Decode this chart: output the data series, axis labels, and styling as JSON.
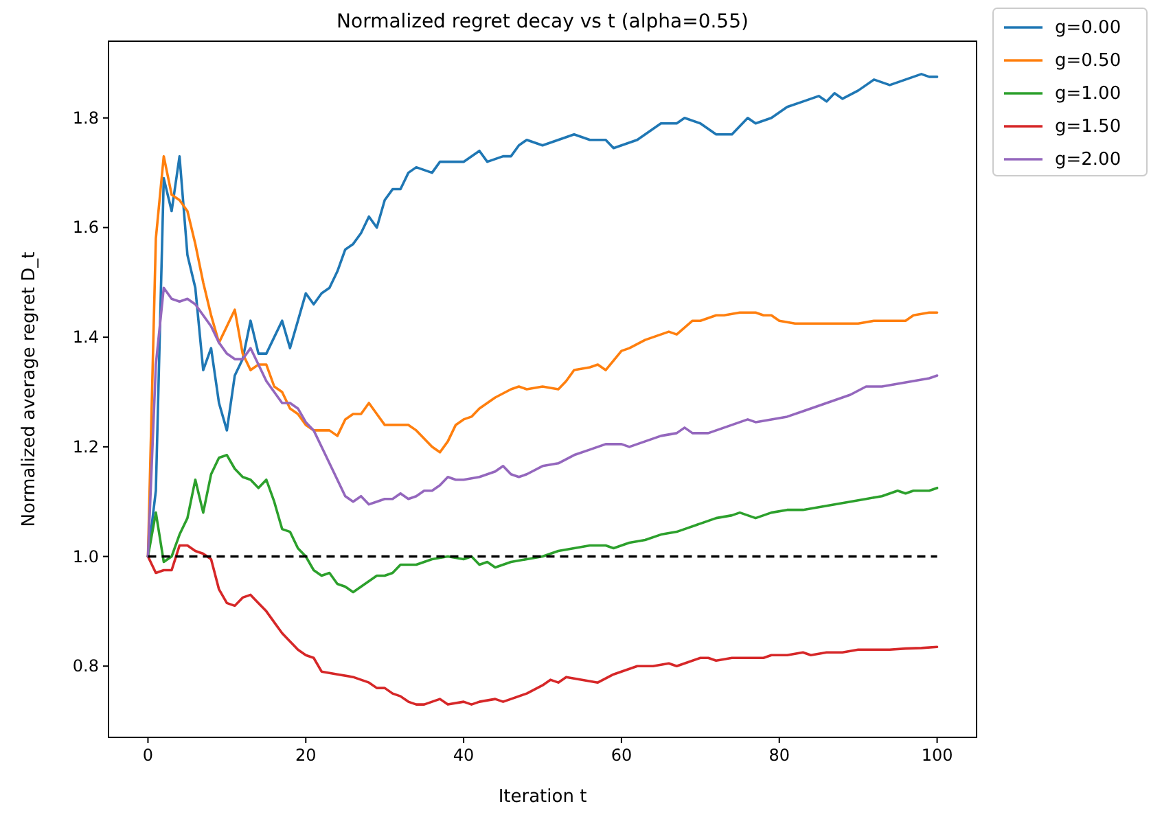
{
  "chart_data": {
    "type": "line",
    "title": "Normalized regret decay vs t (alpha=0.55)",
    "xlabel": "Iteration t",
    "ylabel": "Normalized average regret D_t",
    "xlim": [
      -5,
      105
    ],
    "ylim": [
      0.67,
      1.94
    ],
    "xticks": [
      0,
      20,
      40,
      60,
      80,
      100
    ],
    "yticks": [
      {
        "value": 0.8,
        "label": "0.8"
      },
      {
        "value": 1.0,
        "label": "1.0"
      },
      {
        "value": 1.2,
        "label": "1.2"
      },
      {
        "value": 1.4,
        "label": "1.4"
      },
      {
        "value": 1.6,
        "label": "1.6"
      },
      {
        "value": 1.8,
        "label": "1.8"
      }
    ],
    "grid": false,
    "legend": "top right",
    "marker": "none",
    "line_style": "solid",
    "ref_lines": [
      {
        "axis": "y",
        "value": 1.0,
        "color": "#000000",
        "line_style": "dashed"
      }
    ],
    "series": [
      {
        "name": "g=0.00",
        "color": "#1f77b4",
        "x": [
          0,
          1,
          2,
          3,
          4,
          5,
          6,
          7,
          8,
          9,
          10,
          11,
          12,
          13,
          14,
          15,
          16,
          17,
          18,
          19,
          20,
          21,
          22,
          23,
          24,
          25,
          26,
          27,
          28,
          29,
          30,
          31,
          32,
          33,
          34,
          36,
          37,
          40,
          42,
          43,
          45,
          46,
          47,
          48,
          50,
          52,
          54,
          56,
          58,
          59,
          62,
          64,
          65,
          67,
          68,
          70,
          72,
          74,
          76,
          77,
          79,
          81,
          83,
          85,
          86,
          87,
          88,
          90,
          92,
          94,
          96,
          98,
          99,
          100
        ],
        "values": [
          1.0,
          1.12,
          1.69,
          1.63,
          1.73,
          1.55,
          1.49,
          1.34,
          1.38,
          1.28,
          1.23,
          1.33,
          1.36,
          1.43,
          1.37,
          1.37,
          1.4,
          1.43,
          1.38,
          1.43,
          1.48,
          1.46,
          1.48,
          1.49,
          1.52,
          1.56,
          1.57,
          1.59,
          1.62,
          1.6,
          1.65,
          1.67,
          1.67,
          1.7,
          1.71,
          1.7,
          1.72,
          1.72,
          1.74,
          1.72,
          1.73,
          1.73,
          1.75,
          1.76,
          1.75,
          1.76,
          1.77,
          1.76,
          1.76,
          1.745,
          1.76,
          1.78,
          1.79,
          1.79,
          1.8,
          1.79,
          1.77,
          1.77,
          1.8,
          1.79,
          1.8,
          1.82,
          1.83,
          1.84,
          1.83,
          1.845,
          1.835,
          1.85,
          1.87,
          1.86,
          1.87,
          1.88,
          1.875,
          1.875
        ]
      },
      {
        "name": "g=0.50",
        "color": "#ff7f0e",
        "x": [
          0,
          1,
          2,
          3,
          4,
          5,
          6,
          7,
          8,
          9,
          10,
          11,
          12,
          13,
          14,
          15,
          16,
          17,
          18,
          19,
          20,
          21,
          22,
          23,
          24,
          25,
          26,
          27,
          28,
          29,
          30,
          31,
          33,
          34,
          36,
          37,
          38,
          39,
          40,
          41,
          42,
          44,
          46,
          47,
          48,
          50,
          52,
          53,
          54,
          56,
          57,
          58,
          60,
          61,
          63,
          64,
          66,
          67,
          69,
          70,
          72,
          73,
          75,
          77,
          78,
          79,
          80,
          82,
          85,
          88,
          90,
          92,
          94,
          96,
          97,
          99,
          100
        ],
        "values": [
          1.0,
          1.58,
          1.73,
          1.66,
          1.65,
          1.63,
          1.57,
          1.5,
          1.44,
          1.39,
          1.42,
          1.45,
          1.37,
          1.34,
          1.35,
          1.35,
          1.31,
          1.3,
          1.27,
          1.26,
          1.24,
          1.23,
          1.23,
          1.23,
          1.22,
          1.25,
          1.26,
          1.26,
          1.28,
          1.26,
          1.24,
          1.24,
          1.24,
          1.23,
          1.2,
          1.19,
          1.21,
          1.24,
          1.25,
          1.255,
          1.27,
          1.29,
          1.305,
          1.31,
          1.305,
          1.31,
          1.305,
          1.32,
          1.34,
          1.345,
          1.35,
          1.34,
          1.375,
          1.38,
          1.395,
          1.4,
          1.41,
          1.405,
          1.43,
          1.43,
          1.44,
          1.44,
          1.445,
          1.445,
          1.44,
          1.44,
          1.43,
          1.425,
          1.425,
          1.425,
          1.425,
          1.43,
          1.43,
          1.43,
          1.44,
          1.445,
          1.445
        ]
      },
      {
        "name": "g=1.00",
        "color": "#2ca02c",
        "x": [
          0,
          1,
          2,
          3,
          4,
          5,
          6,
          7,
          8,
          9,
          10,
          11,
          12,
          13,
          14,
          15,
          16,
          17,
          18,
          19,
          20,
          21,
          22,
          23,
          24,
          25,
          26,
          27,
          28,
          29,
          30,
          31,
          32,
          34,
          36,
          38,
          40,
          41,
          42,
          43,
          44,
          46,
          48,
          50,
          52,
          54,
          56,
          57,
          58,
          59,
          61,
          63,
          65,
          67,
          68,
          70,
          72,
          74,
          75,
          76,
          77,
          79,
          81,
          83,
          85,
          87,
          89,
          91,
          93,
          95,
          96,
          97,
          99,
          100
        ],
        "values": [
          1.0,
          1.08,
          0.99,
          1.0,
          1.04,
          1.07,
          1.14,
          1.08,
          1.15,
          1.18,
          1.185,
          1.16,
          1.145,
          1.14,
          1.125,
          1.14,
          1.1,
          1.05,
          1.045,
          1.015,
          1.0,
          0.975,
          0.965,
          0.97,
          0.95,
          0.945,
          0.935,
          0.945,
          0.955,
          0.965,
          0.965,
          0.97,
          0.985,
          0.985,
          0.995,
          1.0,
          0.995,
          1.0,
          0.985,
          0.99,
          0.98,
          0.99,
          0.995,
          1.0,
          1.01,
          1.015,
          1.02,
          1.02,
          1.02,
          1.015,
          1.025,
          1.03,
          1.04,
          1.045,
          1.05,
          1.06,
          1.07,
          1.075,
          1.08,
          1.075,
          1.07,
          1.08,
          1.085,
          1.085,
          1.09,
          1.095,
          1.1,
          1.105,
          1.11,
          1.12,
          1.115,
          1.12,
          1.12,
          1.125
        ]
      },
      {
        "name": "g=1.50",
        "color": "#d62728",
        "x": [
          0,
          1,
          2,
          3,
          4,
          5,
          6,
          7,
          8,
          9,
          10,
          11,
          12,
          13,
          14,
          15,
          16,
          17,
          18,
          19,
          20,
          21,
          22,
          24,
          26,
          27,
          28,
          29,
          30,
          31,
          32,
          33,
          34,
          35,
          36,
          37,
          38,
          40,
          41,
          42,
          44,
          45,
          46,
          48,
          50,
          51,
          52,
          53,
          55,
          57,
          59,
          60,
          62,
          64,
          66,
          67,
          68,
          70,
          71,
          72,
          74,
          76,
          78,
          79,
          81,
          83,
          84,
          86,
          88,
          90,
          92,
          94,
          96,
          98,
          100
        ],
        "values": [
          1.0,
          0.97,
          0.975,
          0.975,
          1.02,
          1.02,
          1.01,
          1.005,
          0.995,
          0.94,
          0.915,
          0.91,
          0.925,
          0.93,
          0.915,
          0.9,
          0.88,
          0.86,
          0.845,
          0.83,
          0.82,
          0.815,
          0.79,
          0.785,
          0.78,
          0.775,
          0.77,
          0.76,
          0.76,
          0.75,
          0.745,
          0.735,
          0.73,
          0.73,
          0.735,
          0.74,
          0.73,
          0.735,
          0.73,
          0.735,
          0.74,
          0.735,
          0.74,
          0.75,
          0.765,
          0.775,
          0.77,
          0.78,
          0.775,
          0.77,
          0.785,
          0.79,
          0.8,
          0.8,
          0.805,
          0.8,
          0.805,
          0.815,
          0.815,
          0.81,
          0.815,
          0.815,
          0.815,
          0.82,
          0.82,
          0.825,
          0.82,
          0.825,
          0.825,
          0.83,
          0.83,
          0.83,
          0.832,
          0.833,
          0.835
        ]
      },
      {
        "name": "g=2.00",
        "color": "#9467bd",
        "x": [
          0,
          1,
          2,
          3,
          4,
          5,
          6,
          7,
          8,
          9,
          10,
          11,
          12,
          13,
          14,
          15,
          16,
          17,
          18,
          19,
          20,
          21,
          22,
          23,
          24,
          25,
          26,
          27,
          28,
          29,
          30,
          31,
          32,
          33,
          34,
          35,
          36,
          37,
          38,
          39,
          40,
          42,
          44,
          45,
          46,
          47,
          48,
          50,
          52,
          54,
          56,
          58,
          60,
          61,
          63,
          65,
          67,
          68,
          69,
          71,
          72,
          74,
          76,
          77,
          79,
          81,
          83,
          85,
          87,
          89,
          91,
          93,
          95,
          97,
          99,
          100
        ],
        "values": [
          1.0,
          1.35,
          1.49,
          1.47,
          1.465,
          1.47,
          1.46,
          1.44,
          1.42,
          1.39,
          1.37,
          1.36,
          1.36,
          1.38,
          1.35,
          1.32,
          1.3,
          1.28,
          1.28,
          1.27,
          1.245,
          1.23,
          1.2,
          1.17,
          1.14,
          1.11,
          1.1,
          1.11,
          1.095,
          1.1,
          1.105,
          1.105,
          1.115,
          1.105,
          1.11,
          1.12,
          1.12,
          1.13,
          1.145,
          1.14,
          1.14,
          1.145,
          1.155,
          1.165,
          1.15,
          1.145,
          1.15,
          1.165,
          1.17,
          1.185,
          1.195,
          1.205,
          1.205,
          1.2,
          1.21,
          1.22,
          1.225,
          1.235,
          1.225,
          1.225,
          1.23,
          1.24,
          1.25,
          1.245,
          1.25,
          1.255,
          1.265,
          1.275,
          1.285,
          1.295,
          1.31,
          1.31,
          1.315,
          1.32,
          1.325,
          1.33
        ]
      }
    ]
  }
}
